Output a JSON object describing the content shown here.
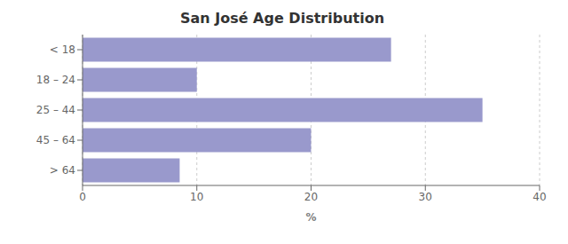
{
  "chart_data": {
    "type": "bar",
    "orientation": "horizontal",
    "title": "San José Age Distribution",
    "categories": [
      "< 18",
      "18 – 24",
      "25 – 44",
      "45 – 64",
      "> 64"
    ],
    "values": [
      27.0,
      10.0,
      35.0,
      20.0,
      8.5
    ],
    "color": "#9999cc",
    "xlabel": "%",
    "xlim": [
      0,
      40
    ],
    "xticks": [
      0,
      10,
      20,
      30,
      40
    ],
    "grid": true
  }
}
